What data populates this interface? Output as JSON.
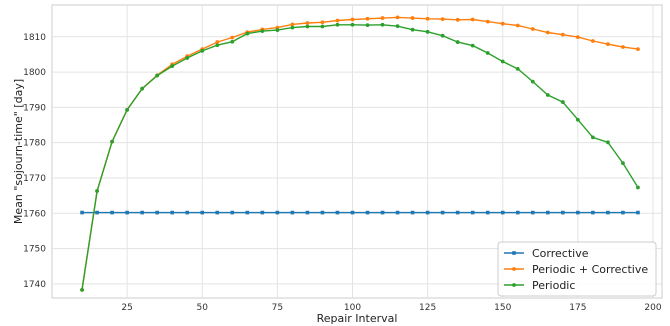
{
  "chart_data": {
    "type": "line",
    "title": "",
    "xlabel": "Repair Interval",
    "ylabel": "Mean \"sojourn-time\" [day]",
    "xlim": [
      0,
      203
    ],
    "ylim": [
      1736,
      1819
    ],
    "xticks": [
      25,
      50,
      75,
      100,
      125,
      150,
      175,
      200
    ],
    "yticks": [
      1740,
      1750,
      1760,
      1770,
      1780,
      1790,
      1800,
      1810
    ],
    "grid": true,
    "legend_position": "bottom-right",
    "x": [
      10,
      15,
      20,
      25,
      30,
      35,
      40,
      45,
      50,
      55,
      60,
      65,
      70,
      75,
      80,
      85,
      90,
      95,
      100,
      105,
      110,
      115,
      120,
      125,
      130,
      135,
      140,
      145,
      150,
      155,
      160,
      165,
      170,
      175,
      180,
      185,
      190,
      195
    ],
    "series": [
      {
        "name": "Corrective",
        "color": "#1f77b4",
        "marker": "square",
        "values": [
          1760.2,
          1760.2,
          1760.2,
          1760.2,
          1760.2,
          1760.2,
          1760.2,
          1760.2,
          1760.2,
          1760.2,
          1760.2,
          1760.2,
          1760.2,
          1760.2,
          1760.2,
          1760.2,
          1760.2,
          1760.2,
          1760.2,
          1760.2,
          1760.2,
          1760.2,
          1760.2,
          1760.2,
          1760.2,
          1760.2,
          1760.2,
          1760.2,
          1760.2,
          1760.2,
          1760.2,
          1760.2,
          1760.2,
          1760.2,
          1760.2,
          1760.2,
          1760.2,
          1760.2
        ]
      },
      {
        "name": "Periodic + Corrective",
        "color": "#ff7f0e",
        "marker": "circle",
        "values": [
          1738.3,
          1766.3,
          1780.3,
          1789.3,
          1795.3,
          1799.1,
          1802.2,
          1804.5,
          1806.5,
          1808.5,
          1809.8,
          1811.3,
          1812.1,
          1812.6,
          1813.5,
          1813.9,
          1814.1,
          1814.6,
          1814.9,
          1815.1,
          1815.3,
          1815.5,
          1815.3,
          1815.1,
          1815.0,
          1814.8,
          1814.9,
          1814.3,
          1813.7,
          1813.2,
          1812.2,
          1811.2,
          1810.6,
          1809.9,
          1808.8,
          1807.9,
          1807.1,
          1806.5
        ]
      },
      {
        "name": "Periodic",
        "color": "#2ca02c",
        "marker": "circle",
        "values": [
          1738.3,
          1766.3,
          1780.3,
          1789.3,
          1795.3,
          1799.0,
          1801.7,
          1804.0,
          1806.0,
          1807.6,
          1808.6,
          1810.9,
          1811.6,
          1811.9,
          1812.6,
          1812.9,
          1812.9,
          1813.4,
          1813.4,
          1813.3,
          1813.4,
          1813.0,
          1812.0,
          1811.4,
          1810.3,
          1808.5,
          1807.5,
          1805.4,
          1803.0,
          1800.9,
          1797.3,
          1793.5,
          1791.5,
          1786.5,
          1781.5,
          1780.1,
          1774.2,
          1767.3
        ]
      }
    ]
  }
}
